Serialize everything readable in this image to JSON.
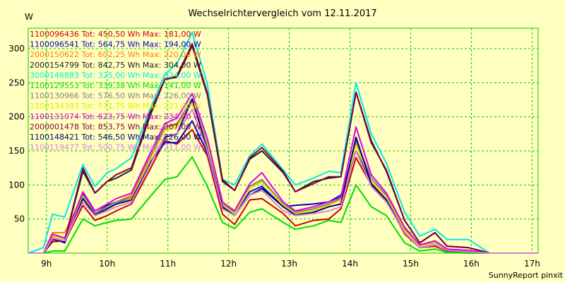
{
  "chart_data": {
    "type": "line",
    "title": "Wechselrichtervergleich vom 12.11.2017",
    "ylabel": "W",
    "xlabel": "",
    "credit": "SunnyReport pinxit",
    "ylim": [
      0,
      330
    ],
    "yticks": [
      50,
      100,
      150,
      200,
      250,
      300
    ],
    "xlim": [
      8.7,
      17.1
    ],
    "xticks": [
      9,
      10,
      11,
      12,
      13,
      14,
      15,
      16,
      17
    ],
    "xtick_labels": [
      "9h",
      "10h",
      "11h",
      "12h",
      "13h",
      "14h",
      "15h",
      "16h",
      "17h"
    ],
    "grid": true,
    "legend_position": "top-left",
    "x": [
      8.7,
      8.95,
      9.1,
      9.3,
      9.6,
      9.8,
      10.0,
      10.15,
      10.4,
      10.7,
      10.95,
      11.15,
      11.4,
      11.65,
      11.9,
      12.1,
      12.35,
      12.55,
      12.9,
      13.1,
      13.4,
      13.65,
      13.85,
      14.1,
      14.35,
      14.6,
      14.9,
      15.15,
      15.4,
      15.6,
      15.95,
      16.3,
      16.6,
      17.1
    ],
    "series": [
      {
        "name": "1100096436",
        "legend": "1100096436 Tot: 450,50 Wh Max: 181,00 W",
        "color": "#d00000",
        "values": [
          0,
          0,
          20,
          17,
          70,
          48,
          55,
          62,
          72,
          122,
          165,
          160,
          181,
          143,
          57,
          42,
          78,
          80,
          58,
          40,
          48,
          50,
          65,
          140,
          100,
          78,
          28,
          8,
          10,
          3,
          2,
          0,
          0,
          0
        ]
      },
      {
        "name": "1100096541",
        "legend": "1100096541 Tot: 564,75 Wh Max: 194,00 W",
        "color": "#0000cc",
        "values": [
          0,
          0,
          22,
          15,
          88,
          58,
          70,
          75,
          80,
          132,
          162,
          162,
          194,
          147,
          66,
          58,
          90,
          98,
          68,
          70,
          72,
          75,
          85,
          150,
          105,
          82,
          35,
          10,
          12,
          4,
          2,
          0,
          0,
          0
        ]
      },
      {
        "name": "2000150622",
        "legend": "2000150622 Tot: 602,25 Wh Max: 220,00 W",
        "color": "#ff8000",
        "values": [
          0,
          0,
          30,
          30,
          85,
          58,
          68,
          75,
          85,
          140,
          185,
          188,
          220,
          160,
          70,
          60,
          95,
          105,
          70,
          60,
          65,
          72,
          80,
          160,
          105,
          82,
          35,
          10,
          15,
          5,
          3,
          0,
          0,
          0
        ]
      },
      {
        "name": "2000154799",
        "legend": "2000154799 Tot: 842,75 Wh Max: 304,00 W",
        "color": "#202020",
        "values": [
          0,
          0,
          17,
          18,
          120,
          88,
          105,
          110,
          122,
          200,
          255,
          258,
          304,
          232,
          105,
          92,
          138,
          150,
          118,
          90,
          105,
          110,
          112,
          236,
          165,
          120,
          48,
          15,
          30,
          10,
          8,
          0,
          0,
          0
        ]
      },
      {
        "name": "3000146883",
        "legend": "3000146883 Tot: 325,00 Wh Max: 324,00 W",
        "color": "#00eaea",
        "values": [
          0,
          8,
          57,
          53,
          130,
          98,
          118,
          124,
          140,
          210,
          262,
          278,
          324,
          248,
          108,
          100,
          143,
          160,
          122,
          100,
          110,
          120,
          118,
          250,
          175,
          132,
          60,
          25,
          35,
          20,
          20,
          0,
          0,
          0
        ]
      },
      {
        "name": "1100129553",
        "legend": "1100129553 Tot: 339,38 Wh Max: 141,00 W",
        "color": "#00dd00",
        "values": [
          0,
          0,
          3,
          3,
          50,
          40,
          45,
          48,
          50,
          82,
          108,
          112,
          141,
          98,
          45,
          36,
          60,
          65,
          45,
          35,
          40,
          48,
          45,
          100,
          68,
          55,
          15,
          3,
          6,
          1,
          0,
          0,
          0,
          0
        ]
      },
      {
        "name": "1100130966",
        "legend": "1100130966 Tot: 576,50 Wh Max: 226,00 W",
        "color": "#808080",
        "values": [
          0,
          0,
          25,
          20,
          85,
          58,
          68,
          75,
          82,
          138,
          185,
          190,
          226,
          160,
          72,
          60,
          98,
          108,
          72,
          60,
          65,
          72,
          80,
          165,
          110,
          85,
          35,
          10,
          15,
          5,
          3,
          0,
          0,
          0
        ]
      },
      {
        "name": "1100134393",
        "legend": "1100134393 Tot: 571,75 Wh Max: 221,00 W",
        "color": "#e8e800",
        "values": [
          0,
          0,
          24,
          20,
          82,
          56,
          66,
          72,
          80,
          135,
          180,
          185,
          221,
          158,
          70,
          58,
          95,
          104,
          70,
          58,
          63,
          70,
          78,
          158,
          105,
          82,
          33,
          10,
          14,
          5,
          3,
          0,
          0,
          0
        ]
      },
      {
        "name": "1100131074",
        "legend": "1100131074 Tot: 623,75 Wh Max: 234,00 W",
        "color": "#e000e0",
        "values": [
          0,
          0,
          28,
          22,
          90,
          62,
          72,
          80,
          88,
          145,
          190,
          198,
          234,
          168,
          75,
          62,
          102,
          118,
          75,
          62,
          68,
          75,
          82,
          185,
          115,
          88,
          38,
          12,
          18,
          6,
          4,
          0,
          0,
          0
        ]
      },
      {
        "name": "2000001478",
        "legend": "2000001478 Tot: 853,75 Wh Max: 307,00 W",
        "color": "#800040",
        "values": [
          0,
          0,
          17,
          18,
          125,
          88,
          105,
          115,
          125,
          205,
          255,
          260,
          307,
          235,
          108,
          92,
          140,
          155,
          120,
          90,
          102,
          112,
          112,
          236,
          162,
          122,
          48,
          15,
          30,
          10,
          8,
          0,
          0,
          0
        ]
      },
      {
        "name": "1100148421",
        "legend": "1100148421 Tot: 546,50 Wh Max: 226,00 W",
        "color": "#000080",
        "values": [
          0,
          0,
          22,
          16,
          80,
          56,
          65,
          72,
          78,
          130,
          170,
          175,
          226,
          152,
          68,
          55,
          85,
          95,
          68,
          56,
          60,
          68,
          72,
          170,
          102,
          78,
          30,
          8,
          12,
          4,
          2,
          0,
          0,
          0
        ]
      },
      {
        "name": "1100119477",
        "legend": "1100119477 Tot: 500,75 Wh Max: 211,00 W",
        "color": "#d880d8",
        "values": [
          0,
          0,
          22,
          18,
          75,
          55,
          62,
          68,
          75,
          128,
          172,
          175,
          211,
          150,
          65,
          55,
          85,
          92,
          62,
          55,
          58,
          62,
          68,
          150,
          98,
          75,
          30,
          8,
          12,
          4,
          2,
          0,
          0,
          0
        ]
      }
    ]
  }
}
